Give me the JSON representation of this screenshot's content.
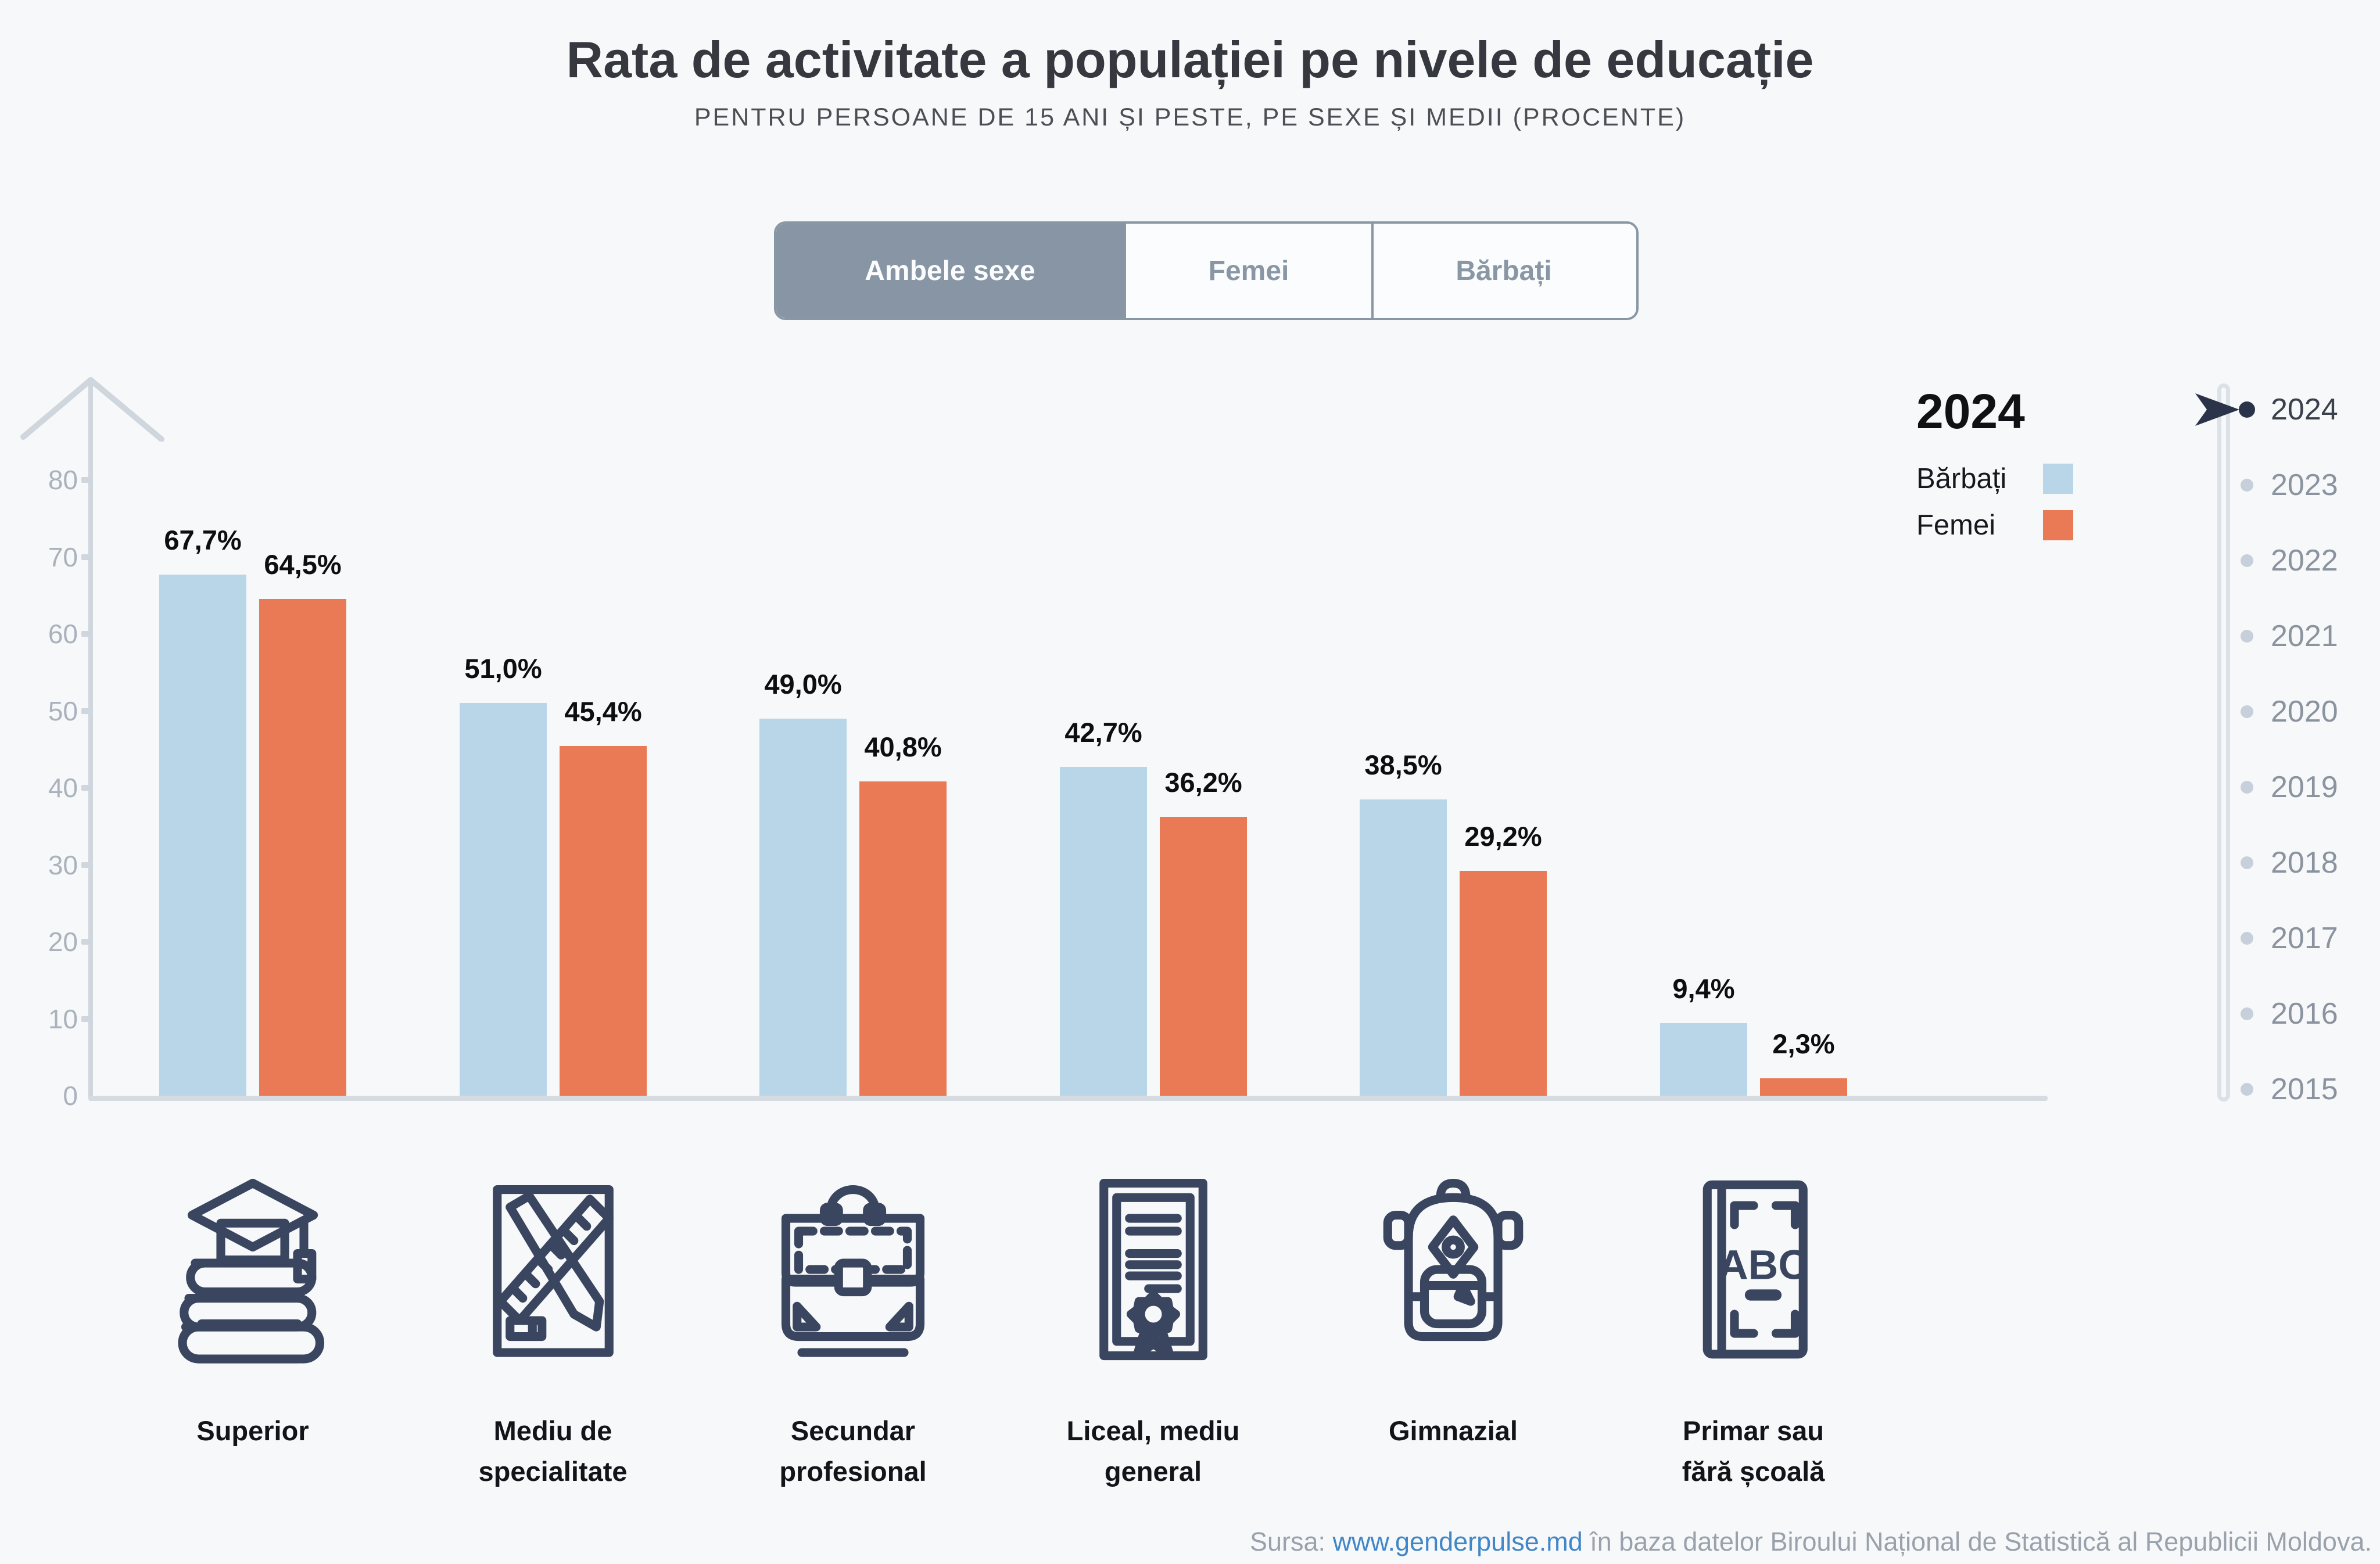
{
  "title": "Rata de activitate a populației pe nivele de educație",
  "subtitle": "PENTRU PERSOANE DE 15 ANI ȘI PESTE, PE SEXE ȘI MEDII (PROCENTE)",
  "tabs": [
    {
      "label": "Ambele sexe",
      "selected": true
    },
    {
      "label": "Femei",
      "selected": false
    },
    {
      "label": "Bărbați",
      "selected": false
    }
  ],
  "legend": {
    "year": "2024",
    "series": [
      {
        "name": "Bărbați",
        "color": "#B9D6E9"
      },
      {
        "name": "Femei",
        "color": "#E97A55"
      }
    ]
  },
  "timeline": {
    "years": [
      "2024",
      "2023",
      "2022",
      "2021",
      "2020",
      "2019",
      "2018",
      "2017",
      "2016",
      "2015"
    ],
    "selected": "2024",
    "selected_color": "#2A3349",
    "dot_color": "#C7D0DA"
  },
  "chart_data": {
    "type": "bar",
    "categories": [
      "Superior",
      "Mediu de specialitate",
      "Secundar profesional",
      "Liceal, mediu general",
      "Gimnazial",
      "Primar sau fără școală"
    ],
    "category_lines": [
      [
        "Superior"
      ],
      [
        "Mediu de",
        "specialitate"
      ],
      [
        "Secundar",
        "profesional"
      ],
      [
        "Liceal, mediu",
        "general"
      ],
      [
        "Gimnazial"
      ],
      [
        "Primar sau",
        "fără școală"
      ]
    ],
    "icons": [
      "books-graduation-cap-icon",
      "pencil-ruler-icon",
      "briefcase-icon",
      "diploma-icon",
      "backpack-icon",
      "abc-book-icon"
    ],
    "series": [
      {
        "name": "Bărbați",
        "color": "#B9D6E9",
        "values": [
          67.7,
          51.0,
          49.0,
          42.7,
          38.5,
          9.4
        ],
        "labels": [
          "67,7%",
          "51,0%",
          "49,0%",
          "42,7%",
          "38,5%",
          "9,4%"
        ]
      },
      {
        "name": "Femei",
        "color": "#E97A55",
        "values": [
          64.5,
          45.4,
          40.8,
          36.2,
          29.2,
          2.3
        ],
        "labels": [
          "64,5%",
          "45,4%",
          "40,8%",
          "36,2%",
          "29,2%",
          "2,3%"
        ]
      }
    ],
    "ylabel": "",
    "xlabel": "",
    "y_ticks": [
      0,
      10,
      20,
      30,
      40,
      50,
      60,
      70,
      80
    ],
    "ylim": [
      0,
      80
    ],
    "grid": false,
    "legend_position": "top-right"
  },
  "footer": {
    "prefix": "Sursa: ",
    "link": "www.genderpulse.md",
    "suffix": " în baza datelor Biroului Național de Statistică al Republicii Moldova."
  }
}
